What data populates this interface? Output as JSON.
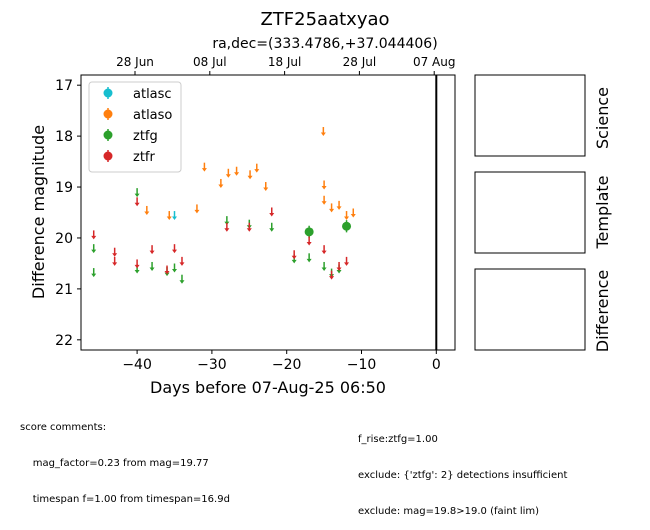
{
  "title": "ZTF25aatxyao",
  "subtitle": "ra,dec=(333.4786,+37.044406)",
  "colors": {
    "atlasc": "#17becf",
    "atlaso": "#ff7f0e",
    "ztfg": "#2ca02c",
    "ztfr": "#d62728"
  },
  "chart_data": {
    "type": "scatter",
    "xlabel": "Days before 07-Aug-25 06:50",
    "ylabel": "Difference magnitude",
    "xlim": [
      -47.5,
      2.5
    ],
    "ylim": [
      22.2,
      16.8
    ],
    "y_inverted": true,
    "xticks": [
      -40,
      -30,
      -20,
      -10,
      0
    ],
    "yticks": [
      17,
      18,
      19,
      20,
      21,
      22
    ],
    "top_axis_ticks": [
      {
        "x": -40.28,
        "label": "28 Jun"
      },
      {
        "x": -30.28,
        "label": "08 Jul"
      },
      {
        "x": -20.28,
        "label": "18 Jul"
      },
      {
        "x": -10.28,
        "label": "28 Jul"
      },
      {
        "x": -0.28,
        "label": "07 Aug"
      }
    ],
    "reference_line_x": 0,
    "legend_position": "top-left",
    "series": [
      {
        "name": "atlasc",
        "color": "#17becf",
        "upper_limits": [
          {
            "x": -35.0,
            "y": 19.55
          }
        ],
        "detections": []
      },
      {
        "name": "atlaso",
        "color": "#ff7f0e",
        "upper_limits": [
          {
            "x": -38.7,
            "y": 19.45
          },
          {
            "x": -35.7,
            "y": 19.55
          },
          {
            "x": -32.0,
            "y": 19.42
          },
          {
            "x": -31.0,
            "y": 18.6
          },
          {
            "x": -28.8,
            "y": 18.92
          },
          {
            "x": -27.8,
            "y": 18.72
          },
          {
            "x": -26.7,
            "y": 18.68
          },
          {
            "x": -24.9,
            "y": 18.75
          },
          {
            "x": -24.0,
            "y": 18.62
          },
          {
            "x": -22.8,
            "y": 18.98
          },
          {
            "x": -15.1,
            "y": 17.9
          },
          {
            "x": -15.0,
            "y": 18.95
          },
          {
            "x": -15.0,
            "y": 19.25
          },
          {
            "x": -14.0,
            "y": 19.4
          },
          {
            "x": -13.0,
            "y": 19.35
          },
          {
            "x": -12.0,
            "y": 19.55
          },
          {
            "x": -11.1,
            "y": 19.5
          }
        ],
        "detections": []
      },
      {
        "name": "ztfg",
        "color": "#2ca02c",
        "upper_limits": [
          {
            "x": -45.8,
            "y": 20.2
          },
          {
            "x": -45.8,
            "y": 20.67
          },
          {
            "x": -40.0,
            "y": 19.1
          },
          {
            "x": -40.0,
            "y": 20.6
          },
          {
            "x": -38.0,
            "y": 20.55
          },
          {
            "x": -36.0,
            "y": 20.65
          },
          {
            "x": -35.0,
            "y": 20.58
          },
          {
            "x": -34.0,
            "y": 20.8
          },
          {
            "x": -28.0,
            "y": 19.65
          },
          {
            "x": -25.0,
            "y": 19.72
          },
          {
            "x": -22.0,
            "y": 19.78
          },
          {
            "x": -19.0,
            "y": 20.4
          },
          {
            "x": -17.0,
            "y": 20.38
          },
          {
            "x": -15.0,
            "y": 20.55
          },
          {
            "x": -14.0,
            "y": 20.68
          },
          {
            "x": -13.0,
            "y": 20.6
          }
        ],
        "detections": [
          {
            "x": -17.0,
            "y": 19.88,
            "err": 0.12
          },
          {
            "x": -12.0,
            "y": 19.77,
            "err": 0.12
          }
        ]
      },
      {
        "name": "ztfr",
        "color": "#d62728",
        "upper_limits": [
          {
            "x": -45.8,
            "y": 19.93
          },
          {
            "x": -43.0,
            "y": 20.27
          },
          {
            "x": -43.0,
            "y": 20.45
          },
          {
            "x": -40.0,
            "y": 19.28
          },
          {
            "x": -40.0,
            "y": 20.5
          },
          {
            "x": -38.0,
            "y": 20.22
          },
          {
            "x": -36.0,
            "y": 20.62
          },
          {
            "x": -35.0,
            "y": 20.2
          },
          {
            "x": -34.0,
            "y": 20.45
          },
          {
            "x": -28.0,
            "y": 19.78
          },
          {
            "x": -25.0,
            "y": 19.78
          },
          {
            "x": -22.0,
            "y": 19.48
          },
          {
            "x": -19.0,
            "y": 20.32
          },
          {
            "x": -17.0,
            "y": 20.05
          },
          {
            "x": -15.0,
            "y": 20.22
          },
          {
            "x": -14.0,
            "y": 20.72
          },
          {
            "x": -13.0,
            "y": 20.55
          },
          {
            "x": -12.0,
            "y": 20.45
          }
        ],
        "detections": []
      }
    ]
  },
  "side_panels": [
    "Science",
    "Template",
    "Difference"
  ],
  "comments_left": [
    "score comments:",
    "    mag_factor=0.23 from mag=19.77",
    "    timespan f=1.00 from timespan=16.9d"
  ],
  "comments_right": [
    "f_rise:ztfg=1.00",
    "exclude: {'ztfg': 2} detections insufficient",
    "exclude: mag=19.8>19.0 (faint lim)"
  ]
}
